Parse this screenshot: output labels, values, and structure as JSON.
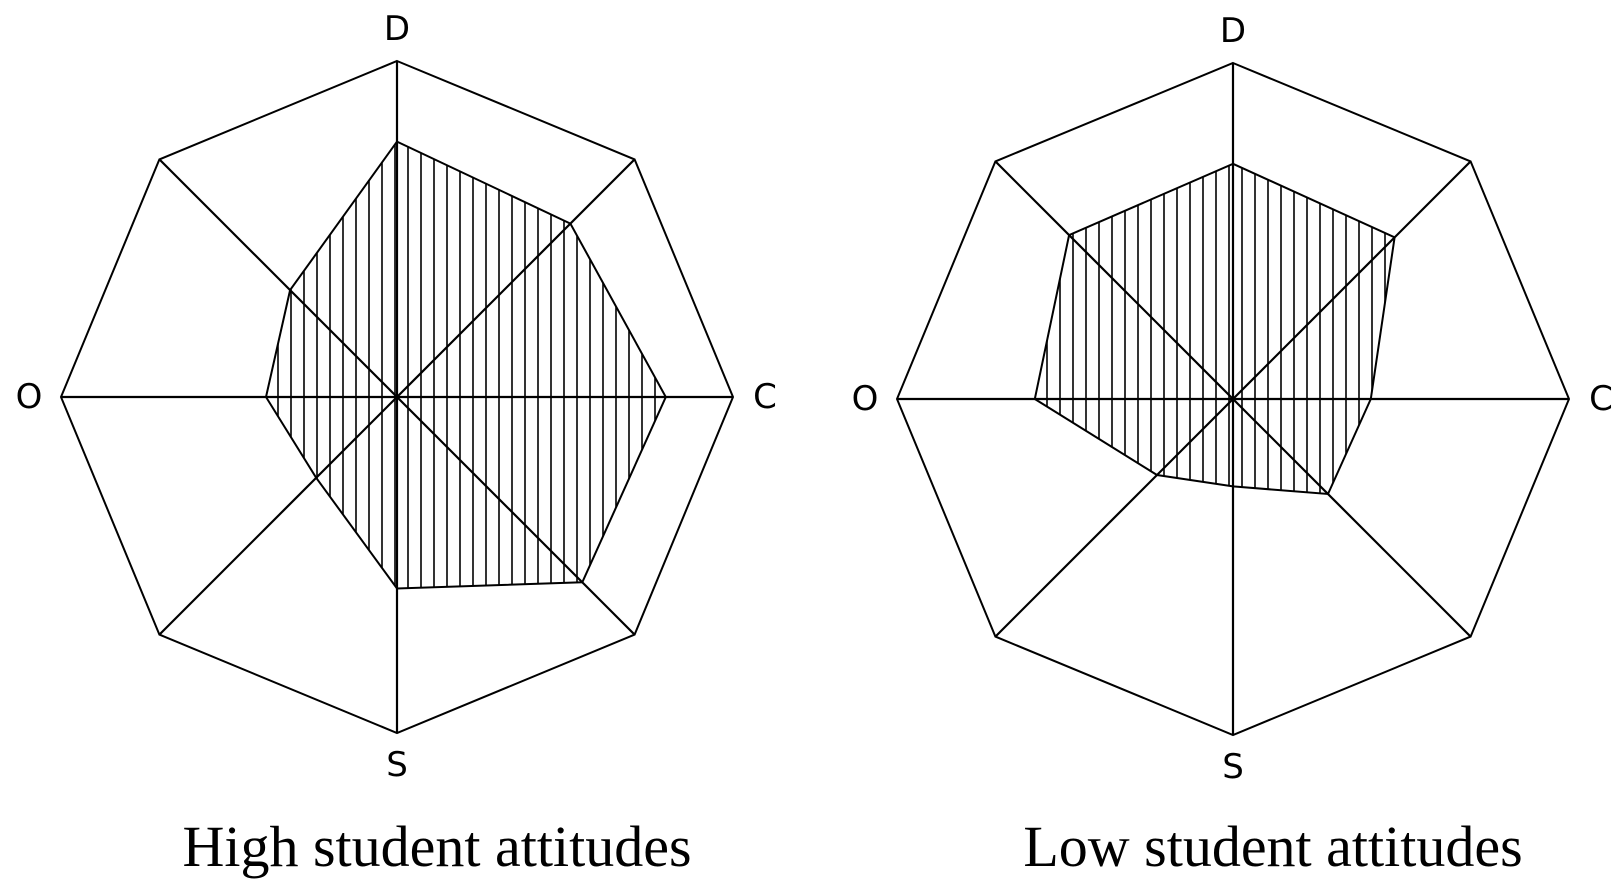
{
  "chart_data": [
    {
      "type": "radar",
      "caption": "High student attitudes",
      "axes": [
        "D",
        "",
        "C",
        "",
        "S",
        "",
        "O",
        ""
      ],
      "range": [
        0,
        1
      ],
      "grid": "octagon outline with spokes",
      "fill": "vertical hatching",
      "values": [
        0.76,
        0.73,
        0.8,
        0.78,
        0.57,
        0.34,
        0.39,
        0.45
      ]
    },
    {
      "type": "radar",
      "caption": "Low student attitudes",
      "axes": [
        "D",
        "",
        "C",
        "",
        "S",
        "",
        "O",
        ""
      ],
      "range": [
        0,
        1
      ],
      "grid": "octagon outline with spokes",
      "fill": "vertical hatching",
      "values": [
        0.7,
        0.68,
        0.41,
        0.4,
        0.26,
        0.32,
        0.59,
        0.69
      ]
    }
  ],
  "colors": {
    "ink": "#000000",
    "background": "#ffffff"
  }
}
